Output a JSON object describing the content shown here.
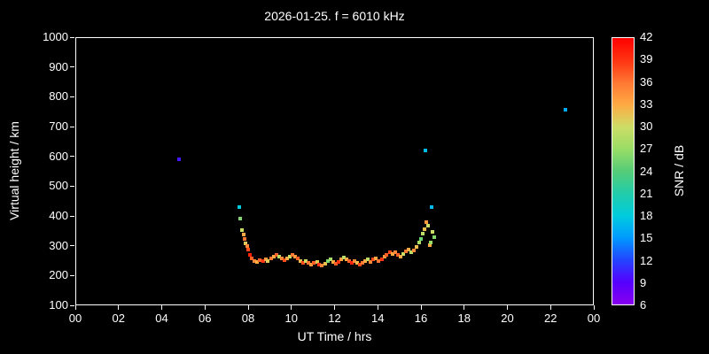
{
  "title": "2026-01-25. f = 6010 kHz",
  "chart_data": {
    "type": "scatter",
    "title": "2026-01-25. f = 6010 kHz",
    "xlabel": "UT Time / hrs",
    "ylabel": "Virtual height / km",
    "xlim": [
      0,
      24
    ],
    "ylim": [
      100,
      1000
    ],
    "background": "#000000",
    "frame_color": "#ffffff",
    "x_tick_labels": [
      "00",
      "02",
      "04",
      "06",
      "08",
      "10",
      "12",
      "14",
      "16",
      "18",
      "20",
      "22",
      "00"
    ],
    "y_tick_values": [
      100,
      200,
      300,
      400,
      500,
      600,
      700,
      800,
      900,
      1000
    ],
    "colorbar": {
      "label": "SNR / dB",
      "min": 6,
      "max": 42,
      "ticks": [
        6,
        9,
        12,
        15,
        18,
        21,
        24,
        27,
        30,
        33,
        36,
        39,
        42
      ],
      "stops": [
        {
          "value": 6,
          "color": "#8800ee"
        },
        {
          "value": 9,
          "color": "#5500ff"
        },
        {
          "value": 12,
          "color": "#2244ff"
        },
        {
          "value": 15,
          "color": "#0099ff"
        },
        {
          "value": 18,
          "color": "#00ccdd"
        },
        {
          "value": 21,
          "color": "#22ccaa"
        },
        {
          "value": 24,
          "color": "#55cc77"
        },
        {
          "value": 27,
          "color": "#99dd66"
        },
        {
          "value": 30,
          "color": "#ccdd66"
        },
        {
          "value": 33,
          "color": "#ffaa44"
        },
        {
          "value": 36,
          "color": "#ff7733"
        },
        {
          "value": 39,
          "color": "#ff3311"
        },
        {
          "value": 42,
          "color": "#ff0000"
        }
      ]
    },
    "points": [
      [
        4.8,
        590,
        10
      ],
      [
        16.2,
        620,
        17
      ],
      [
        22.7,
        755,
        16
      ],
      [
        7.6,
        430,
        18
      ],
      [
        7.62,
        392,
        26
      ],
      [
        7.7,
        352,
        30
      ],
      [
        7.78,
        338,
        33
      ],
      [
        7.82,
        322,
        36
      ],
      [
        7.88,
        308,
        31
      ],
      [
        7.95,
        298,
        35
      ],
      [
        8.02,
        286,
        38
      ],
      [
        8.1,
        268,
        40
      ],
      [
        8.18,
        258,
        37
      ],
      [
        8.3,
        250,
        35
      ],
      [
        8.42,
        246,
        33
      ],
      [
        8.55,
        252,
        37
      ],
      [
        8.68,
        248,
        39
      ],
      [
        8.8,
        254,
        34
      ],
      [
        8.92,
        250,
        31
      ],
      [
        9.05,
        258,
        36
      ],
      [
        9.18,
        264,
        33
      ],
      [
        9.3,
        270,
        37
      ],
      [
        9.42,
        263,
        29
      ],
      [
        9.55,
        256,
        35
      ],
      [
        9.68,
        252,
        38
      ],
      [
        9.8,
        258,
        33
      ],
      [
        9.92,
        264,
        30
      ],
      [
        10.05,
        270,
        36
      ],
      [
        10.18,
        263,
        34
      ],
      [
        10.3,
        256,
        37
      ],
      [
        10.42,
        250,
        32
      ],
      [
        10.55,
        244,
        38
      ],
      [
        10.68,
        249,
        30
      ],
      [
        10.8,
        243,
        36
      ],
      [
        10.92,
        238,
        34
      ],
      [
        11.05,
        242,
        37
      ],
      [
        11.18,
        246,
        31
      ],
      [
        11.3,
        238,
        39
      ],
      [
        11.42,
        234,
        35
      ],
      [
        11.55,
        240,
        32
      ],
      [
        11.68,
        248,
        26
      ],
      [
        11.8,
        255,
        28
      ],
      [
        11.92,
        246,
        33
      ],
      [
        12.05,
        240,
        37
      ],
      [
        12.18,
        246,
        39
      ],
      [
        12.3,
        253,
        34
      ],
      [
        12.42,
        260,
        29
      ],
      [
        12.55,
        254,
        33
      ],
      [
        12.68,
        248,
        37
      ],
      [
        12.8,
        244,
        40
      ],
      [
        12.92,
        250,
        35
      ],
      [
        13.05,
        242,
        32
      ],
      [
        13.18,
        238,
        38
      ],
      [
        13.3,
        244,
        36
      ],
      [
        13.42,
        249,
        33
      ],
      [
        13.55,
        253,
        29
      ],
      [
        13.68,
        247,
        35
      ],
      [
        13.8,
        254,
        38
      ],
      [
        13.92,
        258,
        33
      ],
      [
        14.05,
        248,
        36
      ],
      [
        14.18,
        254,
        39
      ],
      [
        14.3,
        262,
        34
      ],
      [
        14.42,
        270,
        37
      ],
      [
        14.55,
        278,
        38
      ],
      [
        14.68,
        272,
        33
      ],
      [
        14.8,
        277,
        35
      ],
      [
        14.92,
        270,
        37
      ],
      [
        15.05,
        264,
        33
      ],
      [
        15.18,
        272,
        30
      ],
      [
        15.3,
        281,
        36
      ],
      [
        15.42,
        286,
        33
      ],
      [
        15.55,
        278,
        29
      ],
      [
        15.68,
        284,
        35
      ],
      [
        15.8,
        296,
        32
      ],
      [
        15.92,
        310,
        28
      ],
      [
        16.0,
        322,
        25
      ],
      [
        16.08,
        342,
        29
      ],
      [
        16.15,
        354,
        32
      ],
      [
        16.25,
        378,
        34
      ],
      [
        16.32,
        366,
        30
      ],
      [
        16.4,
        302,
        33
      ],
      [
        16.45,
        312,
        27
      ],
      [
        16.5,
        430,
        17
      ],
      [
        16.55,
        346,
        30
      ],
      [
        16.62,
        330,
        26
      ]
    ]
  }
}
